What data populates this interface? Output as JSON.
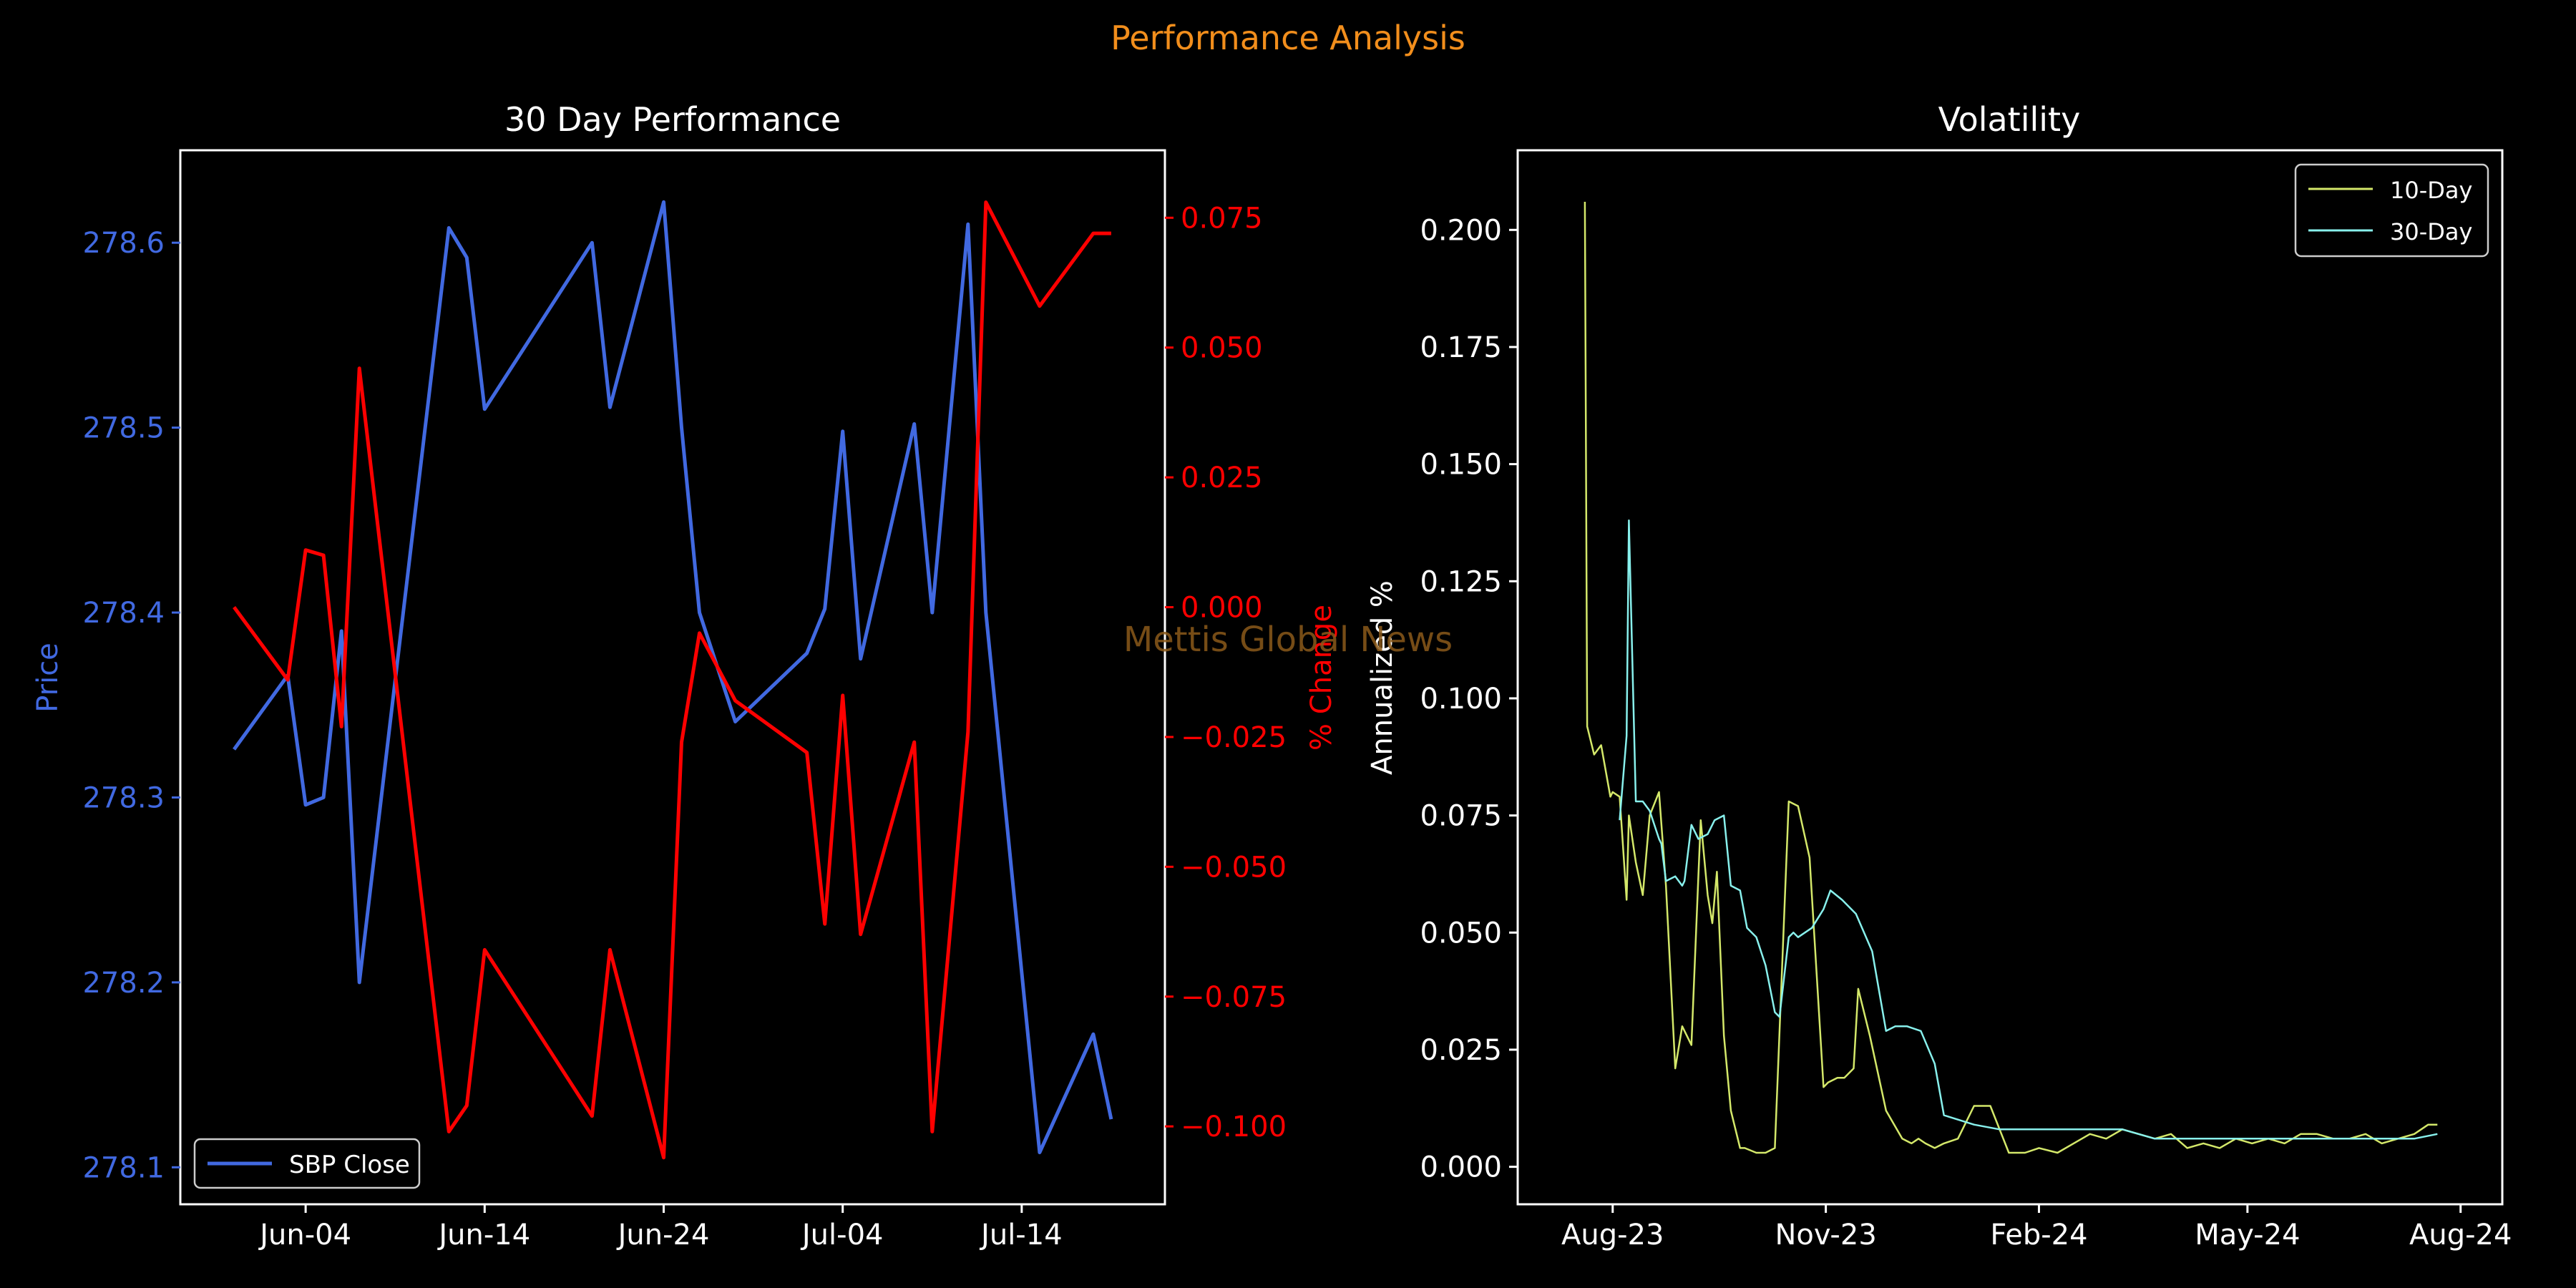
{
  "suptitle": "Performance Analysis",
  "watermark": "Mettis Global News",
  "colors": {
    "background": "#000000",
    "suptitle": "#f28e1c",
    "price": "#4169e1",
    "pct": "#ff0000",
    "vol10": "#d4e86a",
    "vol30": "#88f0ec",
    "axes": "#ffffff",
    "watermark": "#8b5a1a"
  },
  "chart_data": [
    {
      "type": "line",
      "title": "30 Day Performance",
      "xlabel": "",
      "ylabel": "Price",
      "y2label": "% Change",
      "x_ticks": [
        "Jun-04",
        "Jun-14",
        "Jun-24",
        "Jul-04",
        "Jul-14"
      ],
      "ylim": [
        278.08,
        278.65
      ],
      "y2lim": [
        -0.115,
        0.088
      ],
      "y_ticks": [
        "278.1",
        "278.2",
        "278.3",
        "278.4",
        "278.5",
        "278.6"
      ],
      "y2_ticks": [
        "−0.100",
        "−0.075",
        "−0.050",
        "−0.025",
        "0.000",
        "0.025",
        "0.050",
        "0.075"
      ],
      "legend": {
        "position": "lower-left",
        "entries": [
          "SBP Close"
        ]
      },
      "series": [
        {
          "name": "SBP Close",
          "axis": "left",
          "x": [
            "2024-05-31",
            "2024-06-03",
            "2024-06-04",
            "2024-06-05",
            "2024-06-06",
            "2024-06-07",
            "2024-06-12",
            "2024-06-13",
            "2024-06-14",
            "2024-06-20",
            "2024-06-21",
            "2024-06-24",
            "2024-06-25",
            "2024-06-26",
            "2024-06-28",
            "2024-07-02",
            "2024-07-03",
            "2024-07-04",
            "2024-07-05",
            "2024-07-08",
            "2024-07-09",
            "2024-07-11",
            "2024-07-12",
            "2024-07-15",
            "2024-07-18",
            "2024-07-19"
          ],
          "values": [
            278.326,
            278.366,
            278.296,
            278.3,
            278.39,
            278.2,
            278.608,
            278.592,
            278.51,
            278.6,
            278.511,
            278.622,
            278.5,
            278.4,
            278.341,
            278.378,
            278.402,
            278.498,
            278.375,
            278.502,
            278.4,
            278.61,
            278.4,
            278.108,
            278.172,
            278.126
          ]
        },
        {
          "name": "% Change",
          "axis": "right",
          "x": [
            "2024-05-31",
            "2024-06-03",
            "2024-06-04",
            "2024-06-05",
            "2024-06-06",
            "2024-06-07",
            "2024-06-12",
            "2024-06-13",
            "2024-06-14",
            "2024-06-20",
            "2024-06-21",
            "2024-06-24",
            "2024-06-25",
            "2024-06-26",
            "2024-06-28",
            "2024-07-02",
            "2024-07-03",
            "2024-07-04",
            "2024-07-05",
            "2024-07-08",
            "2024-07-09",
            "2024-07-11",
            "2024-07-12",
            "2024-07-15",
            "2024-07-18",
            "2024-07-19"
          ],
          "values": [
            0.0,
            -0.014,
            0.011,
            0.01,
            -0.023,
            0.046,
            -0.101,
            -0.096,
            -0.066,
            -0.098,
            -0.066,
            -0.106,
            -0.026,
            -0.005,
            -0.018,
            -0.028,
            -0.061,
            -0.017,
            -0.063,
            -0.026,
            -0.101,
            -0.024,
            0.078,
            0.058,
            0.072,
            0.072
          ]
        }
      ]
    },
    {
      "type": "line",
      "title": "Volatility",
      "xlabel": "",
      "ylabel": "Annualized %",
      "x_ticks": [
        "Aug-23",
        "Nov-23",
        "Feb-24",
        "May-24",
        "Aug-24"
      ],
      "ylim": [
        -0.008,
        0.217
      ],
      "y_ticks": [
        "0.000",
        "0.025",
        "0.050",
        "0.075",
        "0.100",
        "0.125",
        "0.150",
        "0.175",
        "0.200"
      ],
      "legend": {
        "position": "top-right",
        "entries": [
          "10-Day",
          "30-Day"
        ]
      },
      "series": [
        {
          "name": "10-Day",
          "x": [
            "2023-07-20",
            "2023-07-21",
            "2023-07-24",
            "2023-07-27",
            "2023-07-31",
            "2023-08-01",
            "2023-08-04",
            "2023-08-07",
            "2023-08-08",
            "2023-08-11",
            "2023-08-14",
            "2023-08-17",
            "2023-08-21",
            "2023-08-24",
            "2023-08-28",
            "2023-08-31",
            "2023-09-04",
            "2023-09-07",
            "2023-09-08",
            "2023-09-11",
            "2023-09-13",
            "2023-09-15",
            "2023-09-18",
            "2023-09-21",
            "2023-09-25",
            "2023-09-27",
            "2023-10-02",
            "2023-10-06",
            "2023-10-10",
            "2023-10-16",
            "2023-10-20",
            "2023-10-25",
            "2023-10-31",
            "2023-11-02",
            "2023-11-06",
            "2023-11-09",
            "2023-11-13",
            "2023-11-15",
            "2023-11-20",
            "2023-11-27",
            "2023-12-04",
            "2023-12-08",
            "2023-12-11",
            "2023-12-14",
            "2023-12-18",
            "2023-12-22",
            "2023-12-28",
            "2024-01-04",
            "2024-01-11",
            "2024-01-19",
            "2024-01-26",
            "2024-02-01",
            "2024-02-09",
            "2024-02-16",
            "2024-02-23",
            "2024-03-01",
            "2024-03-08",
            "2024-03-15",
            "2024-03-22",
            "2024-03-29",
            "2024-04-05",
            "2024-04-12",
            "2024-04-19",
            "2024-04-26",
            "2024-05-03",
            "2024-05-10",
            "2024-05-17",
            "2024-05-24",
            "2024-05-31",
            "2024-06-07",
            "2024-06-14",
            "2024-06-21",
            "2024-06-28",
            "2024-07-05",
            "2024-07-12",
            "2024-07-18",
            "2024-07-22"
          ],
          "values": [
            0.206,
            0.094,
            0.088,
            0.09,
            0.079,
            0.08,
            0.079,
            0.057,
            0.075,
            0.065,
            0.058,
            0.075,
            0.08,
            0.06,
            0.021,
            0.03,
            0.026,
            0.062,
            0.074,
            0.058,
            0.052,
            0.063,
            0.028,
            0.012,
            0.004,
            0.004,
            0.003,
            0.003,
            0.004,
            0.078,
            0.077,
            0.066,
            0.017,
            0.018,
            0.019,
            0.019,
            0.021,
            0.038,
            0.028,
            0.012,
            0.006,
            0.005,
            0.006,
            0.005,
            0.004,
            0.005,
            0.006,
            0.013,
            0.013,
            0.003,
            0.003,
            0.004,
            0.003,
            0.005,
            0.007,
            0.006,
            0.008,
            0.007,
            0.006,
            0.007,
            0.004,
            0.005,
            0.004,
            0.006,
            0.005,
            0.006,
            0.005,
            0.007,
            0.007,
            0.006,
            0.006,
            0.007,
            0.005,
            0.006,
            0.007,
            0.009,
            0.009
          ]
        },
        {
          "name": "30-Day",
          "x": [
            "2023-08-04",
            "2023-08-07",
            "2023-08-08",
            "2023-08-11",
            "2023-08-14",
            "2023-08-17",
            "2023-08-21",
            "2023-08-22",
            "2023-08-24",
            "2023-08-28",
            "2023-08-31",
            "2023-09-01",
            "2023-09-04",
            "2023-09-07",
            "2023-09-11",
            "2023-09-14",
            "2023-09-18",
            "2023-09-21",
            "2023-09-25",
            "2023-09-28",
            "2023-10-02",
            "2023-10-06",
            "2023-10-10",
            "2023-10-12",
            "2023-10-16",
            "2023-10-18",
            "2023-10-20",
            "2023-10-26",
            "2023-10-31",
            "2023-11-03",
            "2023-11-08",
            "2023-11-14",
            "2023-11-21",
            "2023-11-27",
            "2023-12-01",
            "2023-12-06",
            "2023-12-12",
            "2023-12-18",
            "2023-12-22",
            "2024-01-04",
            "2024-01-15",
            "2024-01-26",
            "2024-02-09",
            "2024-02-23",
            "2024-03-08",
            "2024-03-22",
            "2024-04-05",
            "2024-04-19",
            "2024-05-03",
            "2024-05-17",
            "2024-05-31",
            "2024-06-14",
            "2024-06-28",
            "2024-07-12",
            "2024-07-22"
          ],
          "values": [
            0.074,
            0.092,
            0.138,
            0.078,
            0.078,
            0.076,
            0.07,
            0.069,
            0.061,
            0.062,
            0.06,
            0.061,
            0.073,
            0.07,
            0.071,
            0.074,
            0.075,
            0.06,
            0.059,
            0.051,
            0.049,
            0.043,
            0.033,
            0.032,
            0.049,
            0.05,
            0.049,
            0.051,
            0.055,
            0.059,
            0.057,
            0.054,
            0.046,
            0.029,
            0.03,
            0.03,
            0.029,
            0.022,
            0.011,
            0.009,
            0.008,
            0.008,
            0.008,
            0.008,
            0.008,
            0.006,
            0.006,
            0.006,
            0.006,
            0.006,
            0.006,
            0.006,
            0.006,
            0.006,
            0.007
          ]
        }
      ]
    }
  ]
}
